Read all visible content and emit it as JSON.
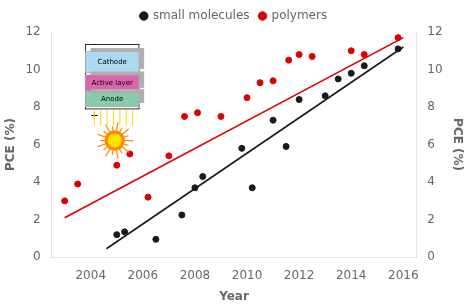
{
  "chart_data": {
    "type": "scatter",
    "xlabel": "Year",
    "ylabel": "PCE (%)",
    "y2label": "PCE (%)",
    "series": [
      {
        "type": "line",
        "color": "#1a1a1a",
        "x": [
          2004.6,
          2016.0
        ],
        "values": [
          0.45,
          11.2
        ]
      },
      {
        "type": "line",
        "color": "#dd0000",
        "x": [
          2003.0,
          2016.0
        ],
        "values": [
          2.1,
          11.7
        ]
      },
      {
        "name": "small molecules",
        "type": "scatter",
        "color": "#1a1a1a",
        "x": [
          2005.0,
          2005.3,
          2006.5,
          2007.5,
          2008.0,
          2008.3,
          2009.8,
          2010.2,
          2011.0,
          2011.5,
          2012.0,
          2013.0,
          2013.5,
          2014.0,
          2014.5,
          2015.8
        ],
        "values": [
          1.2,
          1.35,
          0.95,
          2.25,
          3.7,
          4.3,
          5.8,
          3.7,
          7.3,
          5.9,
          8.4,
          8.6,
          9.5,
          9.8,
          10.2,
          11.1
        ]
      },
      {
        "name": "polymers",
        "type": "scatter",
        "color": "#dd0000",
        "x": [
          2003.0,
          2003.5,
          2005.0,
          2005.5,
          2006.2,
          2007.0,
          2007.6,
          2008.1,
          2009.0,
          2010.0,
          2010.5,
          2011.0,
          2011.6,
          2012.0,
          2012.5,
          2014.0,
          2014.5,
          2015.8
        ],
        "values": [
          3.0,
          3.9,
          4.9,
          5.5,
          3.2,
          5.4,
          7.5,
          7.7,
          7.5,
          8.5,
          9.3,
          9.4,
          10.5,
          10.8,
          10.7,
          11.0,
          10.8,
          11.7
        ]
      }
    ],
    "xlim": [
      2002.5,
      2016.5
    ],
    "xticks": [
      2004,
      2006,
      2008,
      2010,
      2012,
      2014,
      2016
    ],
    "ylim": [
      0,
      12
    ],
    "yticks": [
      0,
      2,
      4,
      6,
      8,
      10,
      12
    ],
    "y2lim": [
      0,
      12
    ],
    "y2ticks": [
      0,
      2,
      4,
      6,
      8,
      10,
      12
    ],
    "grid": false,
    "legend": "top",
    "annotations": [
      "Cathode",
      "Active layer",
      "Anode",
      "-",
      "+"
    ]
  }
}
